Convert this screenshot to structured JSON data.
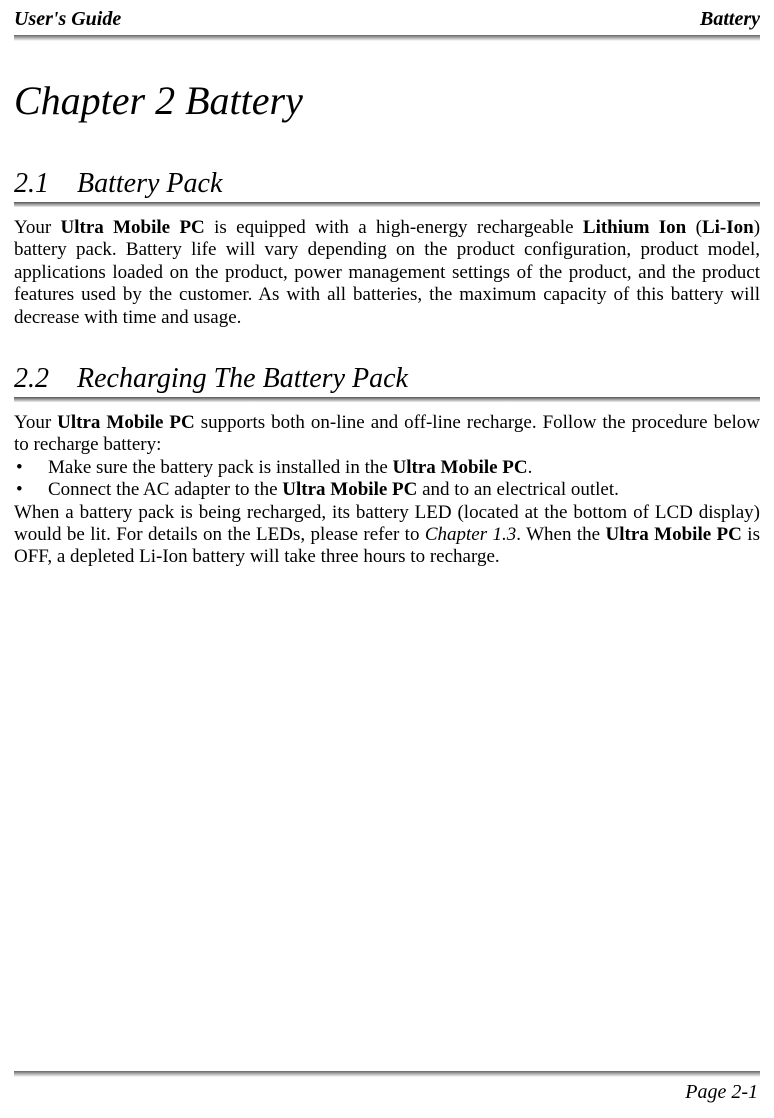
{
  "header": {
    "left": "User's Guide",
    "right": "Battery"
  },
  "chapter_title": "Chapter 2 Battery",
  "sections": {
    "s1": {
      "title": "2.1 Battery Pack",
      "para_pre1": "Your ",
      "bold1": "Ultra Mobile PC",
      "para_mid1": " is equipped with a high-energy rechargeable ",
      "bold2": "Lithium Ion",
      "para_mid2": " (",
      "bold3": "Li-Ion",
      "para_post1": ") battery pack. Battery life will vary depending on the product configuration, product model, applications loaded on the product, power management settings of the product, and the product features used by the customer. As with all batteries, the maximum capacity of this battery will decrease with time and usage."
    },
    "s2": {
      "title": "2.2 Recharging The Battery Pack",
      "intro_pre": "Your ",
      "intro_bold": "Ultra Mobile PC",
      "intro_post": " supports both on-line and off-line recharge. Follow the procedure below to recharge battery:",
      "bullets": {
        "b1_pre": "Make sure the battery pack is installed in the ",
        "b1_bold": "Ultra Mobile PC",
        "b1_post": ".",
        "b2_pre": "Connect the AC adapter to the ",
        "b2_bold": "Ultra Mobile PC",
        "b2_post": " and to an electrical outlet."
      },
      "closing_pre": "When a battery pack is being recharged, its battery LED (located at the bottom of LCD display) would be lit. For details on the LEDs, please refer to ",
      "closing_italic": "Chapter 1.3",
      "closing_mid": ". When the ",
      "closing_bold": "Ultra Mobile PC",
      "closing_post": " is OFF, a depleted Li-Ion battery will take three hours to recharge."
    }
  },
  "footer": {
    "page_label": "Page 2-1"
  },
  "colors": {
    "text": "#000000",
    "background": "#ffffff",
    "divider_dark": "#666666",
    "divider_light": "#ffffff"
  },
  "typography": {
    "body_font": "Times New Roman",
    "chapter_title_size": 40,
    "section_title_size": 28,
    "body_size": 19,
    "header_footer_size": 20
  }
}
